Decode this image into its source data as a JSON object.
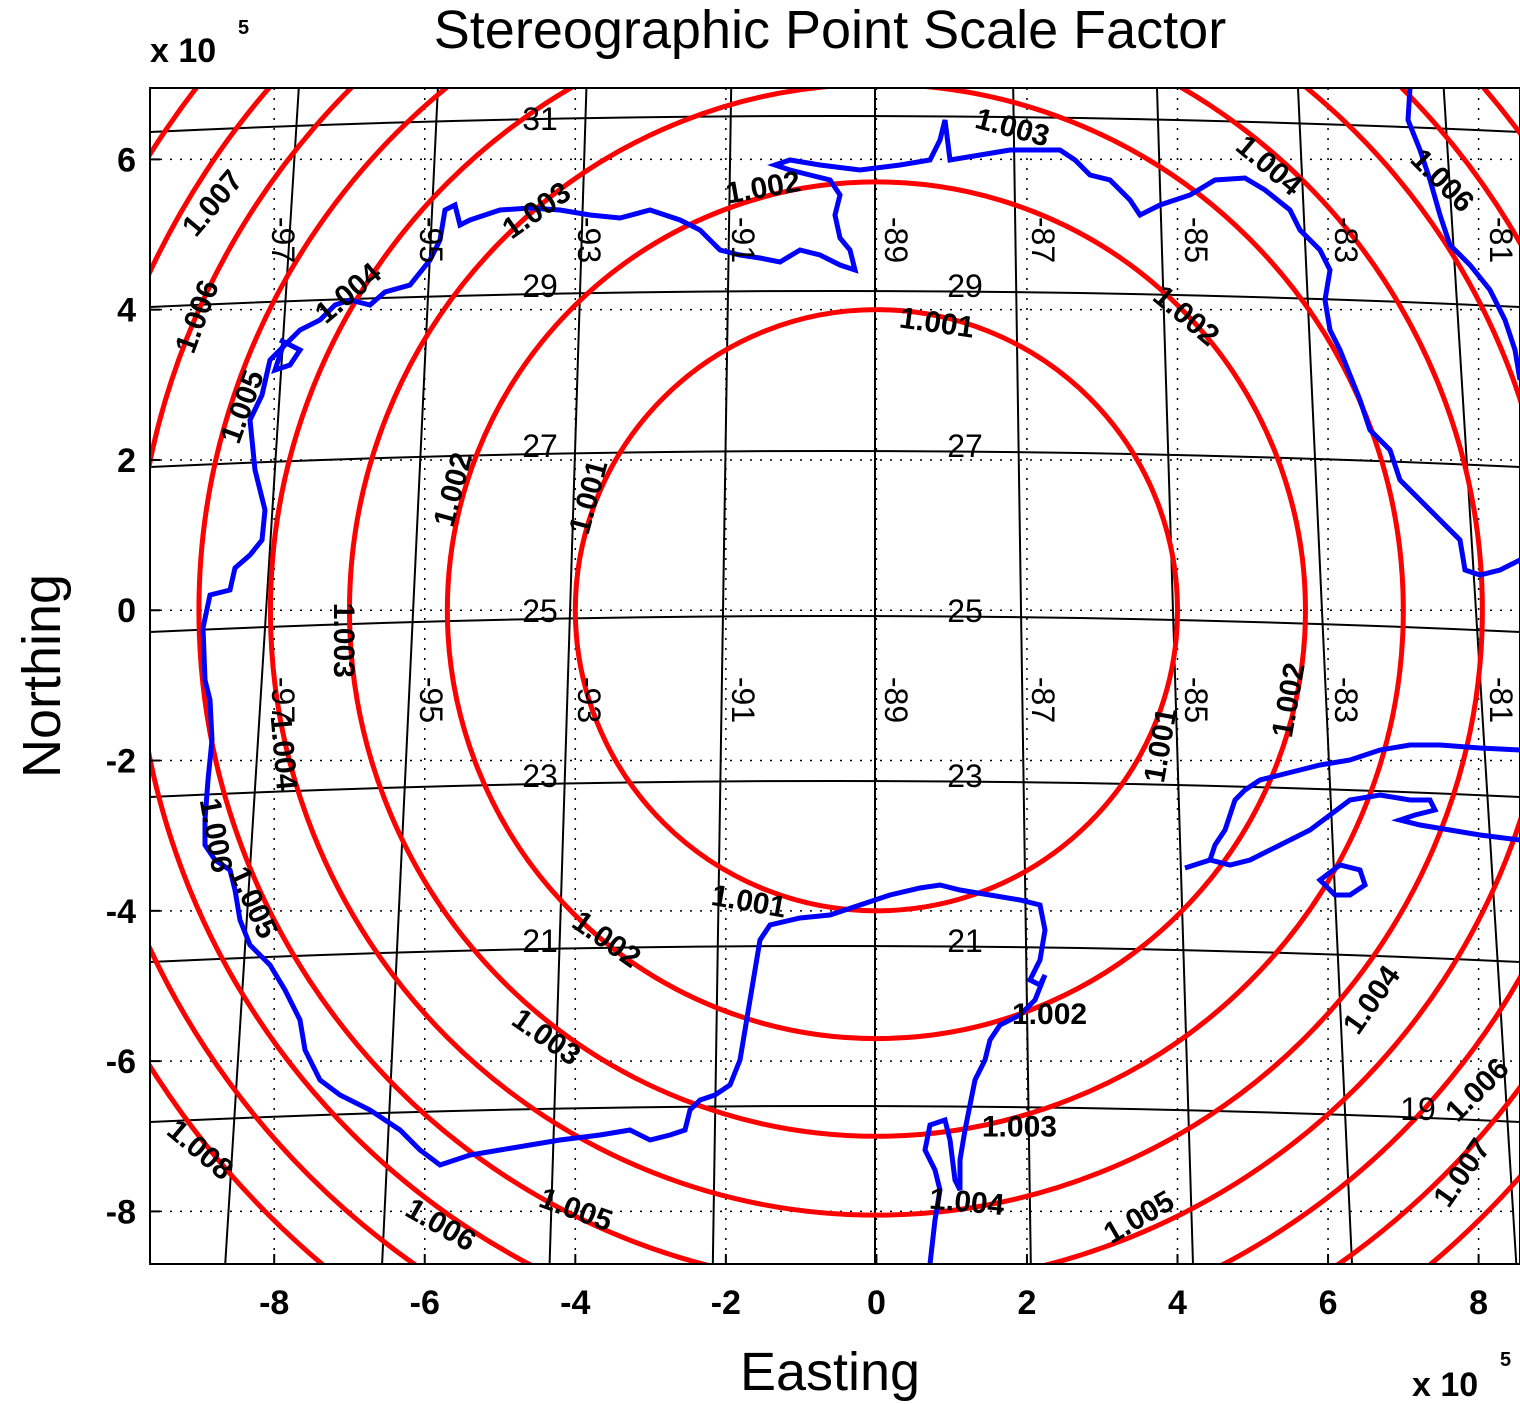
{
  "chart_data": {
    "type": "contour",
    "title": "Stereographic Point Scale Factor",
    "xlabel": "Easting",
    "ylabel": "Northing",
    "x_multiplier": "x 10",
    "x_multiplier_exp": "5",
    "y_multiplier": "x 10",
    "y_multiplier_exp": "5",
    "xlim": [
      -965000,
      855000
    ],
    "ylim": [
      -870000,
      695000
    ],
    "x_ticks": [
      -8,
      -6,
      -4,
      -2,
      0,
      2,
      4,
      6,
      8
    ],
    "x_tick_labels": [
      "-8",
      "-6",
      "-4",
      "-2",
      "0",
      "2",
      "4",
      "6",
      "8"
    ],
    "y_ticks": [
      6,
      4,
      2,
      0,
      -2,
      -4,
      -6,
      -8
    ],
    "y_tick_labels": [
      "6",
      "4",
      "2",
      "0",
      "-2",
      "-4",
      "-6",
      "-8"
    ],
    "grid": true,
    "contours": {
      "color": "#ff0000",
      "center": [
        0,
        0
      ],
      "levels": [
        {
          "value": "1.001",
          "radius": 400000
        },
        {
          "value": "1.002",
          "radius": 570000
        },
        {
          "value": "1.003",
          "radius": 700000
        },
        {
          "value": "1.004",
          "radius": 805000
        },
        {
          "value": "1.005",
          "radius": 900000
        },
        {
          "value": "1.006",
          "radius": 985000
        },
        {
          "value": "1.007",
          "radius": 1065000
        },
        {
          "value": "1.008",
          "radius": 1140000
        }
      ],
      "labels": [
        {
          "text": "1.001",
          "x": 80000,
          "y": 380000,
          "angle": 8
        },
        {
          "text": "1.001",
          "x": -380000,
          "y": 150000,
          "angle": -75
        },
        {
          "text": "1.001",
          "x": 380000,
          "y": -180000,
          "angle": -80
        },
        {
          "text": "1.001",
          "x": -170000,
          "y": -390000,
          "angle": 10
        },
        {
          "text": "1.002",
          "x": -560000,
          "y": 160000,
          "angle": -75
        },
        {
          "text": "1.002",
          "x": 550000,
          "y": -120000,
          "angle": -80
        },
        {
          "text": "1.002",
          "x": 410000,
          "y": 390000,
          "angle": 40
        },
        {
          "text": "1.002",
          "x": -360000,
          "y": -440000,
          "angle": 35
        },
        {
          "text": "1.002",
          "x": 230000,
          "y": -540000,
          "angle": 0
        },
        {
          "text": "1.002",
          "x": -150000,
          "y": 560000,
          "angle": -10
        },
        {
          "text": "1.003",
          "x": 180000,
          "y": 640000,
          "angle": 15
        },
        {
          "text": "1.003",
          "x": -450000,
          "y": 530000,
          "angle": -35
        },
        {
          "text": "1.003",
          "x": -710000,
          "y": -40000,
          "angle": 90
        },
        {
          "text": "1.003",
          "x": -440000,
          "y": -570000,
          "angle": 35
        },
        {
          "text": "1.003",
          "x": 190000,
          "y": -690000,
          "angle": 0
        },
        {
          "text": "1.004",
          "x": -700000,
          "y": 420000,
          "angle": -40
        },
        {
          "text": "1.004",
          "x": 520000,
          "y": 590000,
          "angle": 40
        },
        {
          "text": "1.004",
          "x": -790000,
          "y": -190000,
          "angle": 85
        },
        {
          "text": "1.004",
          "x": 660000,
          "y": -520000,
          "angle": -55
        },
        {
          "text": "1.004",
          "x": 120000,
          "y": -790000,
          "angle": 5
        },
        {
          "text": "1.005",
          "x": -840000,
          "y": 270000,
          "angle": -70
        },
        {
          "text": "1.005",
          "x": -830000,
          "y": -390000,
          "angle": 65
        },
        {
          "text": "1.005",
          "x": -400000,
          "y": -800000,
          "angle": 20
        },
        {
          "text": "1.005",
          "x": 350000,
          "y": -810000,
          "angle": -30
        },
        {
          "text": "1.006",
          "x": -900000,
          "y": 390000,
          "angle": -70
        },
        {
          "text": "1.006",
          "x": -880000,
          "y": -300000,
          "angle": 80
        },
        {
          "text": "1.006",
          "x": -580000,
          "y": -820000,
          "angle": 30
        },
        {
          "text": "1.006",
          "x": 750000,
          "y": 570000,
          "angle": 45
        },
        {
          "text": "1.006",
          "x": 800000,
          "y": -640000,
          "angle": -45
        },
        {
          "text": "1.007",
          "x": -880000,
          "y": 540000,
          "angle": -50
        },
        {
          "text": "1.008",
          "x": -900000,
          "y": -720000,
          "angle": 40
        },
        {
          "text": "1.007",
          "x": 780000,
          "y": -750000,
          "angle": -55
        }
      ]
    },
    "graticule": {
      "color": "#000000",
      "latitude_labels": [
        "31",
        "29",
        "27",
        "25",
        "23",
        "21",
        "19"
      ],
      "longitude_labels": [
        "-97",
        "-95",
        "-93",
        "-91",
        "-89",
        "-87",
        "-85",
        "-83",
        "-81"
      ]
    },
    "coastline_color": "#0000ff"
  }
}
